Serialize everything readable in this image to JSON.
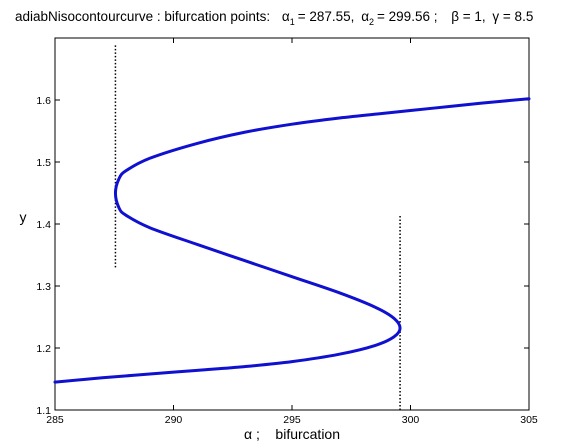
{
  "chart_data": {
    "type": "line",
    "title_parts": {
      "prefix": "adiabNisocontourcurve : bifurcation points:",
      "alpha_symbol": "α",
      "sub1": "1",
      "alpha1_text": "= 287.55,",
      "sub2": "2",
      "alpha2_text": "= 299.56 ;",
      "beta_text": "β = 1,",
      "gamma_text": "γ = 8.5"
    },
    "xlabel": "α ;    bifurcation",
    "ylabel": "y",
    "xlim": [
      285,
      305
    ],
    "ylim": [
      1.1,
      1.7
    ],
    "xticks": [
      285,
      290,
      295,
      300,
      305
    ],
    "yticks": [
      1.1,
      1.2,
      1.3,
      1.4,
      1.5,
      1.6
    ],
    "grid": false,
    "series": [
      {
        "color": "#1010d0",
        "line_style": "solid",
        "x": [
          285,
          287,
          289,
          291,
          293,
          295,
          297,
          298.5,
          299.3,
          299.56,
          299.3,
          298.5,
          297,
          295,
          293,
          291,
          289,
          288,
          287.7,
          287.55,
          287.7,
          288,
          289,
          291,
          293,
          295,
          297,
          299,
          301,
          303,
          305
        ],
        "y": [
          1.145,
          1.152,
          1.158,
          1.164,
          1.17,
          1.178,
          1.19,
          1.204,
          1.218,
          1.232,
          1.248,
          1.266,
          1.289,
          1.315,
          1.341,
          1.367,
          1.394,
          1.414,
          1.426,
          1.45,
          1.473,
          1.486,
          1.506,
          1.53,
          1.548,
          1.561,
          1.571,
          1.579,
          1.587,
          1.595,
          1.602
        ]
      }
    ],
    "reference_lines": [
      {
        "color": "#000000",
        "line_style": "dotted",
        "x": 287.55,
        "y_range": [
          1.33,
          1.69
        ]
      },
      {
        "color": "#000000",
        "line_style": "dotted",
        "x": 299.56,
        "y_range": [
          1.1,
          1.415
        ]
      }
    ]
  }
}
